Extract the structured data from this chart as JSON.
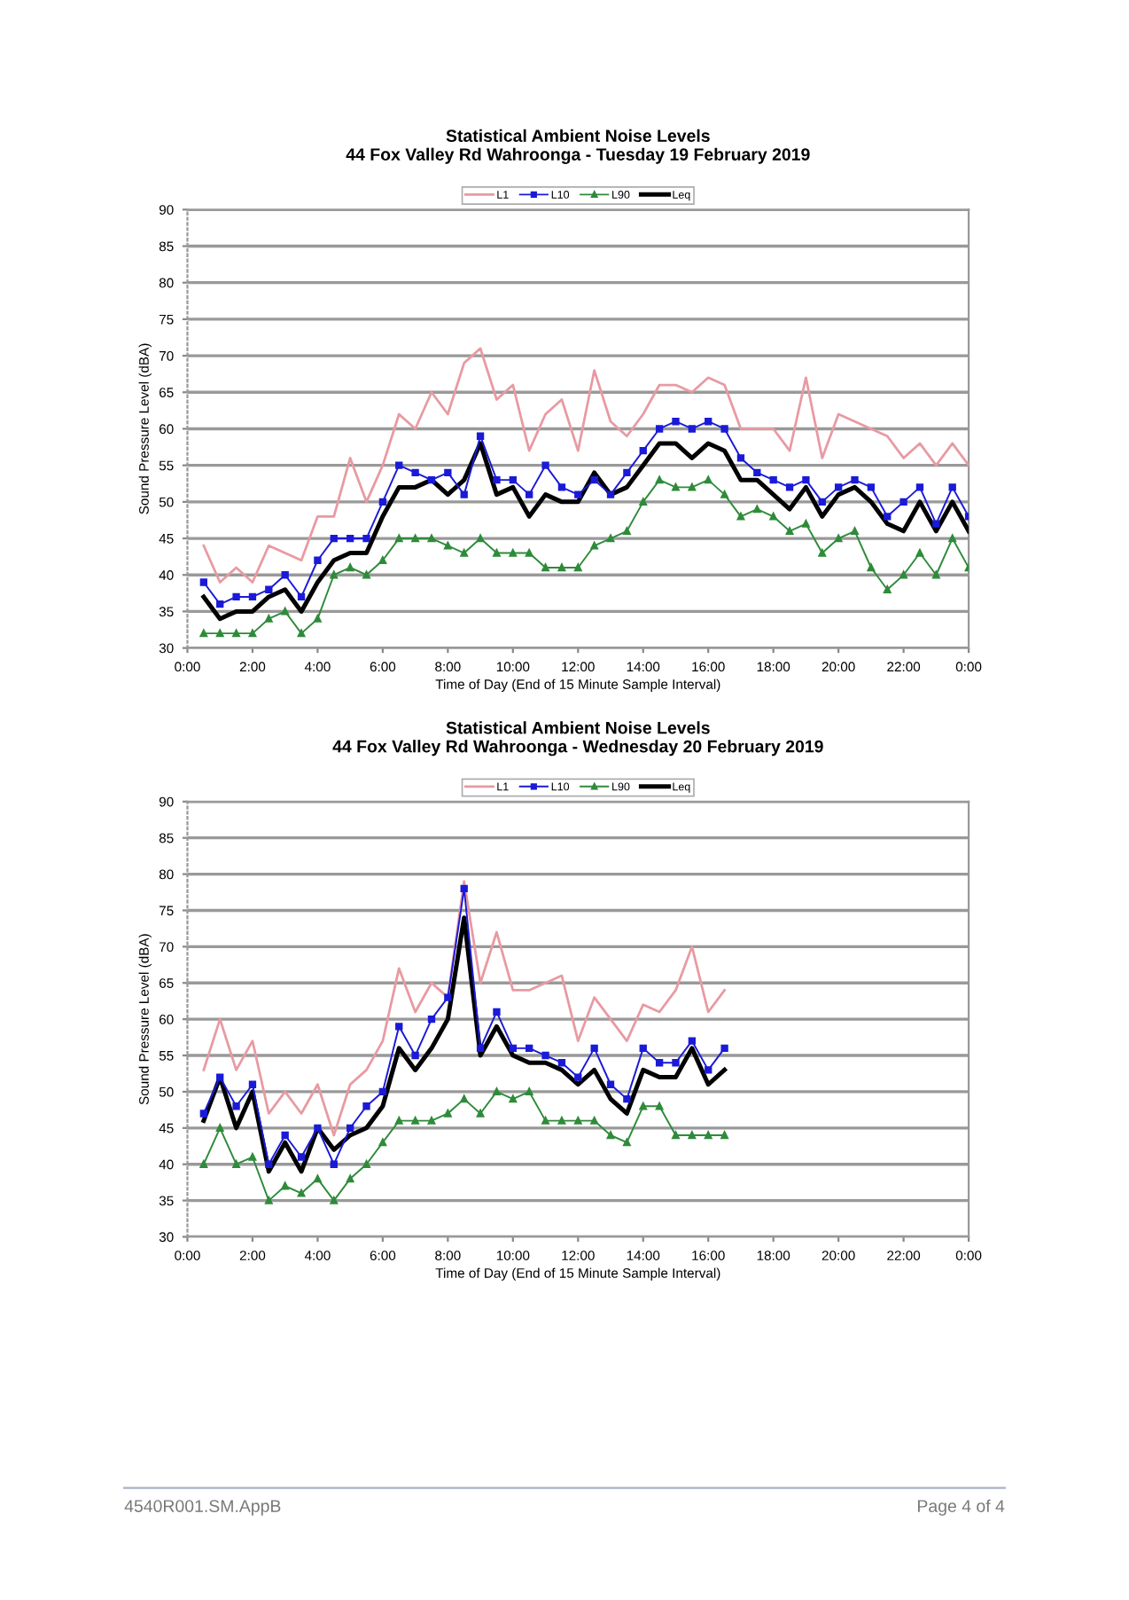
{
  "chart_data": [
    {
      "type": "line",
      "title": "Statistical Ambient Noise Levels",
      "subtitle": "44 Fox Valley Rd Wahroonga - Tuesday 19 February 2019",
      "xlabel": "Time of Day (End of 15 Minute Sample Interval)",
      "ylabel": "Sound Pressure Level (dBA)",
      "x": [
        0.5,
        1.0,
        1.5,
        2.0,
        2.5,
        3.0,
        3.5,
        4.0,
        4.5,
        5.0,
        5.5,
        6.0,
        6.5,
        7.0,
        7.5,
        8.0,
        8.5,
        9.0,
        9.5,
        10.0,
        10.5,
        11.0,
        11.5,
        12.0,
        12.5,
        13.0,
        13.5,
        14.0,
        14.5,
        15.0,
        15.5,
        16.0,
        16.5,
        17.0,
        17.5,
        18.0,
        18.5,
        19.0,
        19.5,
        20.0,
        20.5,
        21.0,
        21.5,
        22.0,
        22.5,
        23.0,
        23.5,
        24.0
      ],
      "series": [
        {
          "name": "L1",
          "color": "#e89aa2",
          "marker": "none",
          "line_style": "solid",
          "values": [
            44,
            39,
            41,
            39,
            44,
            43,
            42,
            48,
            48,
            56,
            50,
            55,
            62,
            60,
            65,
            62,
            69,
            71,
            64,
            66,
            57,
            62,
            64,
            57,
            68,
            61,
            59,
            62,
            66,
            66,
            65,
            67,
            66,
            60,
            60,
            60,
            57,
            67,
            56,
            62,
            61,
            60,
            59,
            56,
            58,
            55,
            58,
            55
          ]
        },
        {
          "name": "L10",
          "color": "#1a1ad8",
          "marker": "square",
          "line_style": "solid",
          "values": [
            39,
            36,
            37,
            37,
            38,
            40,
            37,
            42,
            45,
            45,
            45,
            50,
            55,
            54,
            53,
            54,
            51,
            59,
            53,
            53,
            51,
            55,
            52,
            51,
            53,
            51,
            54,
            57,
            60,
            61,
            60,
            61,
            60,
            56,
            54,
            53,
            52,
            53,
            50,
            52,
            53,
            52,
            48,
            50,
            52,
            47,
            52,
            48
          ]
        },
        {
          "name": "L90",
          "color": "#2e8b3a",
          "marker": "triangle",
          "line_style": "solid",
          "values": [
            32,
            32,
            32,
            32,
            34,
            35,
            32,
            34,
            40,
            41,
            40,
            42,
            45,
            45,
            45,
            44,
            43,
            45,
            43,
            43,
            43,
            41,
            41,
            41,
            44,
            45,
            46,
            50,
            53,
            52,
            52,
            53,
            51,
            48,
            49,
            48,
            46,
            47,
            43,
            45,
            46,
            41,
            38,
            40,
            43,
            40,
            45,
            41
          ]
        },
        {
          "name": "Leq",
          "color": "#000000",
          "marker": "none",
          "line_style": "solid",
          "values": [
            37,
            34,
            35,
            35,
            37,
            38,
            35,
            39,
            42,
            43,
            43,
            48,
            52,
            52,
            53,
            51,
            53,
            58,
            51,
            52,
            48,
            51,
            50,
            50,
            54,
            51,
            52,
            55,
            58,
            58,
            56,
            58,
            57,
            53,
            53,
            51,
            49,
            52,
            48,
            51,
            52,
            50,
            47,
            46,
            50,
            46,
            50,
            46
          ]
        }
      ],
      "xlim": [
        0,
        24
      ],
      "xticks": [
        {
          "value": 0,
          "label": "0:00"
        },
        {
          "value": 2,
          "label": "2:00"
        },
        {
          "value": 4,
          "label": "4:00"
        },
        {
          "value": 6,
          "label": "6:00"
        },
        {
          "value": 8,
          "label": "8:00"
        },
        {
          "value": 10,
          "label": "10:00"
        },
        {
          "value": 12,
          "label": "12:00"
        },
        {
          "value": 14,
          "label": "14:00"
        },
        {
          "value": 16,
          "label": "16:00"
        },
        {
          "value": 18,
          "label": "18:00"
        },
        {
          "value": 20,
          "label": "20:00"
        },
        {
          "value": 22,
          "label": "22:00"
        },
        {
          "value": 24,
          "label": "0:00"
        }
      ],
      "ylim": [
        30,
        90
      ],
      "yticks": [
        30,
        35,
        40,
        45,
        50,
        55,
        60,
        65,
        70,
        75,
        80,
        85,
        90
      ],
      "grid": "y",
      "legend": "top"
    },
    {
      "type": "line",
      "title": "Statistical Ambient Noise Levels",
      "subtitle": "44 Fox Valley Rd Wahroonga - Wednesday 20 February 2019",
      "xlabel": "Time of Day (End of 15 Minute Sample Interval)",
      "ylabel": "Sound Pressure Level (dBA)",
      "x": [
        0.5,
        1.0,
        1.5,
        2.0,
        2.5,
        3.0,
        3.5,
        4.0,
        4.5,
        5.0,
        5.5,
        6.0,
        6.5,
        7.0,
        7.5,
        8.0,
        8.5,
        9.0,
        9.5,
        10.0,
        10.5,
        11.0,
        11.5,
        12.0,
        12.5,
        13.0,
        13.5,
        14.0,
        14.5,
        15.0,
        15.5,
        16.0,
        16.5
      ],
      "series": [
        {
          "name": "L1",
          "color": "#e89aa2",
          "marker": "none",
          "line_style": "solid",
          "values": [
            53,
            60,
            53,
            57,
            47,
            50,
            47,
            51,
            44,
            51,
            53,
            57,
            67,
            61,
            65,
            63,
            79,
            65,
            72,
            64,
            64,
            65,
            66,
            57,
            63,
            60,
            57,
            62,
            61,
            64,
            70,
            61,
            64
          ]
        },
        {
          "name": "L10",
          "color": "#1a1ad8",
          "marker": "square",
          "line_style": "solid",
          "values": [
            47,
            52,
            48,
            51,
            40,
            44,
            41,
            45,
            40,
            45,
            48,
            50,
            59,
            55,
            60,
            63,
            78,
            56,
            61,
            56,
            56,
            55,
            54,
            52,
            56,
            51,
            49,
            56,
            54,
            54,
            57,
            53,
            56
          ]
        },
        {
          "name": "L90",
          "color": "#2e8b3a",
          "marker": "triangle",
          "line_style": "solid",
          "values": [
            40,
            45,
            40,
            41,
            35,
            37,
            36,
            38,
            35,
            38,
            40,
            43,
            46,
            46,
            46,
            47,
            49,
            47,
            50,
            49,
            50,
            46,
            46,
            46,
            46,
            44,
            43,
            48,
            48,
            44,
            44,
            44,
            44
          ]
        },
        {
          "name": "Leq",
          "color": "#000000",
          "marker": "none",
          "line_style": "solid",
          "values": [
            46,
            52,
            45,
            50,
            39,
            43,
            39,
            45,
            42,
            44,
            45,
            48,
            56,
            53,
            56,
            60,
            74,
            55,
            59,
            55,
            54,
            54,
            53,
            51,
            53,
            49,
            47,
            53,
            52,
            52,
            56,
            51,
            53
          ]
        }
      ],
      "xlim": [
        0,
        24
      ],
      "xticks": [
        {
          "value": 0,
          "label": "0:00"
        },
        {
          "value": 2,
          "label": "2:00"
        },
        {
          "value": 4,
          "label": "4:00"
        },
        {
          "value": 6,
          "label": "6:00"
        },
        {
          "value": 8,
          "label": "8:00"
        },
        {
          "value": 10,
          "label": "10:00"
        },
        {
          "value": 12,
          "label": "12:00"
        },
        {
          "value": 14,
          "label": "14:00"
        },
        {
          "value": 16,
          "label": "16:00"
        },
        {
          "value": 18,
          "label": "18:00"
        },
        {
          "value": 20,
          "label": "20:00"
        },
        {
          "value": 22,
          "label": "22:00"
        },
        {
          "value": 24,
          "label": "0:00"
        }
      ],
      "ylim": [
        30,
        90
      ],
      "yticks": [
        30,
        35,
        40,
        45,
        50,
        55,
        60,
        65,
        70,
        75,
        80,
        85,
        90
      ],
      "grid": "y",
      "legend": "top",
      "annotations": [
        "4540R001.SM.AppB",
        "Page 4 of 4"
      ]
    }
  ]
}
